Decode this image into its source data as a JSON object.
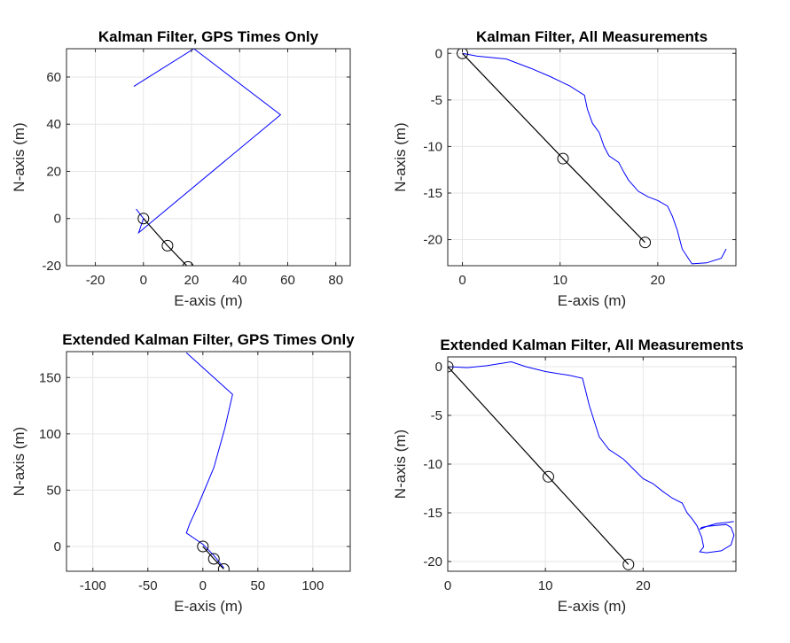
{
  "chart_data": [
    {
      "type": "line",
      "title": "Kalman Filter, GPS Times Only",
      "xlabel": "E-axis (m)",
      "ylabel": "N-axis (m)",
      "xlim": [
        -32,
        86
      ],
      "ylim": [
        -20,
        72
      ],
      "xticks": [
        -20,
        0,
        20,
        40,
        60,
        80
      ],
      "yticks": [
        -20,
        0,
        20,
        40,
        60
      ],
      "grid": true,
      "series": [
        {
          "kind": "estimate",
          "color": "#0000ff",
          "x": [
            -4,
            21,
            57,
            -2,
            0,
            -3
          ],
          "y": [
            56,
            72,
            44,
            -6,
            0,
            4
          ]
        },
        {
          "kind": "gps",
          "color": "#000000",
          "markers": true,
          "x": [
            0,
            10,
            18.5
          ],
          "y": [
            0,
            -11.5,
            -20.5
          ]
        }
      ]
    },
    {
      "type": "line",
      "title": "Kalman Filter, All Measurements",
      "xlabel": "E-axis (m)",
      "ylabel": "N-axis (m)",
      "xlim": [
        -1.5,
        28
      ],
      "ylim": [
        -22.8,
        0.5
      ],
      "xticks": [
        0,
        10,
        20
      ],
      "yticks": [
        -20,
        -15,
        -10,
        -5,
        0
      ],
      "grid": true,
      "series": [
        {
          "kind": "estimate",
          "color": "#0000ff",
          "x": [
            0,
            1.5,
            4.5,
            7,
            9,
            11,
            12.5,
            12.8,
            13.3,
            14,
            14.5,
            15,
            16,
            16.5,
            17,
            17.5,
            18,
            19,
            20,
            21,
            21.5,
            22,
            22.5,
            23.5,
            25,
            26.5,
            27
          ],
          "y": [
            0,
            -0.3,
            -0.6,
            -1.6,
            -2.5,
            -3.5,
            -4.5,
            -6,
            -7.5,
            -8.5,
            -10,
            -11,
            -11.7,
            -12.7,
            -13.6,
            -14.2,
            -14.8,
            -15.4,
            -15.8,
            -16.4,
            -17.5,
            -19,
            -21,
            -22.6,
            -22.5,
            -22,
            -21
          ]
        },
        {
          "kind": "gps",
          "color": "#000000",
          "markers": true,
          "x": [
            0,
            10.3,
            18.7
          ],
          "y": [
            0,
            -11.3,
            -20.3
          ]
        }
      ]
    },
    {
      "type": "line",
      "title": "Extended Kalman Filter, GPS Times Only",
      "xlabel": "E-axis (m)",
      "ylabel": "N-axis (m)",
      "xlim": [
        -124,
        134
      ],
      "ylim": [
        -22,
        173
      ],
      "xticks": [
        -100,
        -50,
        0,
        50,
        100
      ],
      "yticks": [
        0,
        50,
        100,
        150
      ],
      "grid": true,
      "series": [
        {
          "kind": "estimate",
          "color": "#0000ff",
          "x": [
            -15,
            27,
            20,
            10,
            -5,
            -12,
            -15,
            0,
            10,
            19
          ],
          "y": [
            172,
            135,
            105,
            70,
            35,
            20,
            12,
            2,
            -8,
            -19
          ]
        },
        {
          "kind": "gps",
          "color": "#000000",
          "markers": true,
          "x": [
            0,
            10,
            19
          ],
          "y": [
            0,
            -11,
            -20
          ]
        }
      ]
    },
    {
      "type": "line",
      "title": "Extended Kalman Filter, All Measurements",
      "xlabel": "E-axis (m)",
      "ylabel": "N-axis (m)",
      "xlim": [
        0,
        29.5
      ],
      "ylim": [
        -21,
        1
      ],
      "xticks": [
        0,
        10,
        20
      ],
      "yticks": [
        -20,
        -15,
        -10,
        -5,
        0
      ],
      "grid": true,
      "series": [
        {
          "kind": "estimate",
          "color": "#0000ff",
          "x": [
            0,
            2,
            4,
            6.5,
            8,
            10,
            12.5,
            13.8,
            14.5,
            15.5,
            16.5,
            18,
            19,
            20,
            21,
            22,
            23,
            24,
            24.5,
            25,
            25.5,
            26,
            26.2,
            25.8,
            26.5,
            28,
            29,
            29.3,
            29,
            28.5,
            27.5,
            26.5,
            26,
            25.8,
            26.5,
            27.5,
            28.5,
            29.3
          ],
          "y": [
            0,
            -0.1,
            0.1,
            0.5,
            0,
            -0.5,
            -0.9,
            -1.2,
            -4,
            -7.2,
            -8.5,
            -9.5,
            -10.5,
            -11.5,
            -12,
            -12.8,
            -13.5,
            -14,
            -15,
            -15.6,
            -16.3,
            -17.5,
            -18.5,
            -19,
            -19.1,
            -18.9,
            -18.3,
            -17.3,
            -16.5,
            -16.2,
            -16.3,
            -16.4,
            -16.5,
            -16.7,
            -16.4,
            -16.1,
            -16,
            -15.9
          ]
        },
        {
          "kind": "gps",
          "color": "#000000",
          "markers": true,
          "x": [
            0,
            10.3,
            18.5
          ],
          "y": [
            0,
            -11.3,
            -20.3
          ]
        }
      ]
    }
  ]
}
